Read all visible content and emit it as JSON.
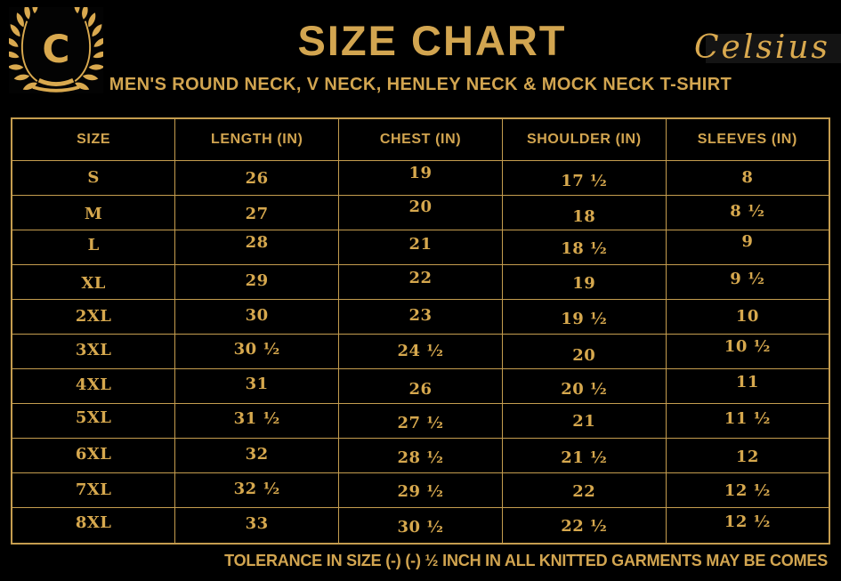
{
  "logo": {
    "letter": "C"
  },
  "brand": {
    "name": "Celsius"
  },
  "header": {
    "title": "SIZE CHART",
    "subtitle": "MEN'S ROUND NECK, V NECK, HENLEY NECK & MOCK NECK T-SHIRT"
  },
  "footer": {
    "note": "TOLERANCE IN SIZE (-) (-)  ½ INCH IN ALL KNITTED GARMENTS MAY BE COMES"
  },
  "colors": {
    "gold": "#D2A550",
    "gold_serif": "#D6A84E",
    "gold_bright": "#D9A94F",
    "border": "#C59D4F",
    "background": "#000000"
  },
  "chart_data": {
    "type": "table",
    "title": "SIZE CHART",
    "columns": [
      "SIZE",
      "LENGTH (IN)",
      "CHEST (IN)",
      "SHOULDER (IN)",
      "SLEEVES (IN)"
    ],
    "rows": [
      [
        "S",
        "26",
        "19",
        "17 ½",
        "8"
      ],
      [
        "M",
        "27",
        "20",
        "18",
        "8 ½"
      ],
      [
        "L",
        "28",
        "21",
        "18 ½",
        "9"
      ],
      [
        "XL",
        "29",
        "22",
        "19",
        "9 ½"
      ],
      [
        "2XL",
        "30",
        "23",
        "19 ½",
        "10"
      ],
      [
        "3XL",
        "30 ½",
        "24 ½",
        "20",
        "10 ½"
      ],
      [
        "4XL",
        "31",
        "26",
        "20 ½",
        "11"
      ],
      [
        "5XL",
        "31 ½",
        "27 ½",
        "21",
        "11 ½"
      ],
      [
        "6XL",
        "32",
        "28 ½",
        "21 ½",
        "12"
      ],
      [
        "7XL",
        "32 ½",
        "29 ½",
        "22",
        "12 ½"
      ],
      [
        "8XL",
        "33",
        "30 ½",
        "22 ½",
        "12 ½"
      ]
    ]
  }
}
